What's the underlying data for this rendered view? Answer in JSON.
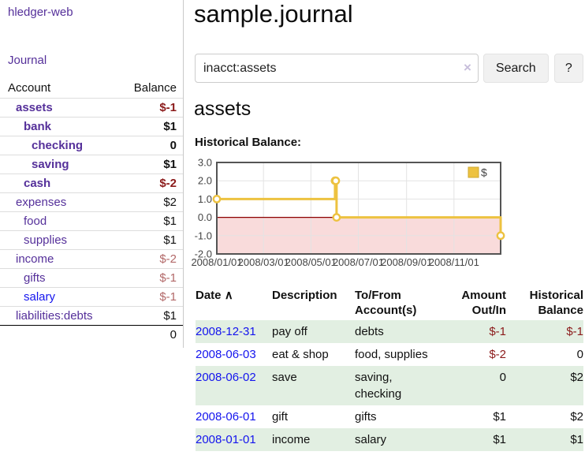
{
  "app": {
    "name": "hledger-web"
  },
  "colors": {
    "accent_purple": "#55309a",
    "link_blue": "#1414ee",
    "negative_strong": "#8b1a1a",
    "negative_muted": "#b26868",
    "row_green": "#e2efe2",
    "chart_line": "#edc240",
    "chart_negative_fill": "#f9dbdb",
    "chart_zero_line": "#8b0000",
    "chart_border": "#545454",
    "chart_grid": "#e3e3e3"
  },
  "sidebar": {
    "journal_link": "Journal",
    "accounts_table": {
      "headers": {
        "account": "Account",
        "balance": "Balance"
      },
      "rows": [
        {
          "name": "assets",
          "balance": "$-1",
          "depth": 0,
          "bold": true,
          "balance_class": "neg-strong",
          "link_class": ""
        },
        {
          "name": "bank",
          "balance": "$1",
          "depth": 1,
          "bold": true,
          "balance_class": "",
          "link_class": ""
        },
        {
          "name": "checking",
          "balance": "0",
          "depth": 2,
          "bold": true,
          "balance_class": "",
          "link_class": ""
        },
        {
          "name": "saving",
          "balance": "$1",
          "depth": 2,
          "bold": true,
          "balance_class": "",
          "link_class": ""
        },
        {
          "name": "cash",
          "balance": "$-2",
          "depth": 1,
          "bold": true,
          "balance_class": "neg-strong",
          "link_class": ""
        },
        {
          "name": "expenses",
          "balance": "$2",
          "depth": 0,
          "bold": false,
          "balance_class": "",
          "link_class": ""
        },
        {
          "name": "food",
          "balance": "$1",
          "depth": 1,
          "bold": false,
          "balance_class": "",
          "link_class": ""
        },
        {
          "name": "supplies",
          "balance": "$1",
          "depth": 1,
          "bold": false,
          "balance_class": "",
          "link_class": ""
        },
        {
          "name": "income",
          "balance": "$-2",
          "depth": 0,
          "bold": false,
          "balance_class": "neg-muted",
          "link_class": ""
        },
        {
          "name": "gifts",
          "balance": "$-1",
          "depth": 1,
          "bold": false,
          "balance_class": "neg-muted",
          "link_class": ""
        },
        {
          "name": "salary",
          "balance": "$-1",
          "depth": 1,
          "bold": false,
          "balance_class": "neg-muted",
          "link_class": "blue"
        },
        {
          "name": "liabilities:debts",
          "balance": "$1",
          "depth": 0,
          "bold": false,
          "balance_class": "",
          "link_class": ""
        }
      ],
      "total": "0"
    }
  },
  "header": {
    "title": "sample.journal"
  },
  "search": {
    "value": "inacct:assets",
    "clear_icon": "×",
    "button_label": "Search",
    "help_label": "?"
  },
  "main": {
    "account_heading": "assets",
    "chart_label": "Historical Balance:"
  },
  "chart_data": {
    "type": "line",
    "title": "Historical Balance",
    "step": true,
    "ylim": [
      -2,
      3
    ],
    "ytick_values": [
      3,
      2,
      1,
      0,
      -1,
      -2
    ],
    "ytick_labels": [
      "3.0",
      "2.0",
      "1.0",
      "0.0",
      "-1.0",
      "-2.0"
    ],
    "xtick_labels": [
      "2008/01/01",
      "2008/03/01",
      "2008/05/01",
      "2008/07/01",
      "2008/09/01",
      "2008/11/01"
    ],
    "xrange": [
      "2008-01-01",
      "2008-12-31"
    ],
    "grid": true,
    "legend": {
      "label": "$",
      "position": "top-right"
    },
    "series": [
      {
        "name": "$",
        "color": "#edc240",
        "points": [
          {
            "date": "2008-01-01",
            "value": 1
          },
          {
            "date": "2008-06-01",
            "value": 2
          },
          {
            "date": "2008-06-02",
            "value": 2
          },
          {
            "date": "2008-06-03",
            "value": 0
          },
          {
            "date": "2008-12-31",
            "value": -1
          }
        ]
      }
    ],
    "negative_region_color": "#f9dbdb",
    "zero_line_color": "#8b0000"
  },
  "register_table": {
    "headers": {
      "date": "Date",
      "sort_arrow": "∧",
      "description": "Description",
      "accounts": "To/From Account(s)",
      "amount": "Amount Out/In",
      "balance": "Historical Balance"
    },
    "rows": [
      {
        "date": "2008-12-31",
        "description": "pay off",
        "accounts": "debts",
        "amount": "$-1",
        "balance": "$-1",
        "amount_class": "neg",
        "balance_class": "neg",
        "green": true
      },
      {
        "date": "2008-06-03",
        "description": "eat & shop",
        "accounts": "food, supplies",
        "amount": "$-2",
        "balance": "0",
        "amount_class": "neg",
        "balance_class": "",
        "green": false
      },
      {
        "date": "2008-06-02",
        "description": "save",
        "accounts": "saving, checking",
        "amount": "0",
        "balance": "$2",
        "amount_class": "",
        "balance_class": "",
        "green": true
      },
      {
        "date": "2008-06-01",
        "description": "gift",
        "accounts": "gifts",
        "amount": "$1",
        "balance": "$2",
        "amount_class": "",
        "balance_class": "",
        "green": false
      },
      {
        "date": "2008-01-01",
        "description": "income",
        "accounts": "salary",
        "amount": "$1",
        "balance": "$1",
        "amount_class": "",
        "balance_class": "",
        "green": true
      }
    ]
  }
}
